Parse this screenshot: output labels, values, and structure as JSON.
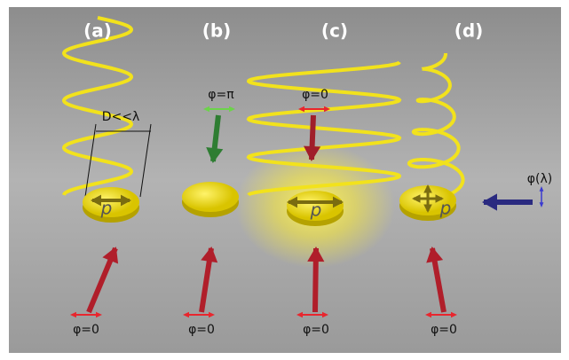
{
  "panels": [
    {
      "label": "(a)",
      "top_label": "D<<λ",
      "dipole": "p",
      "bottom_label": "φ=0"
    },
    {
      "label": "(b)",
      "top_label": "φ=π",
      "bottom_label": "φ=0"
    },
    {
      "label": "(c)",
      "top_label": "φ=0",
      "dipole": "p",
      "bottom_label": "φ=0"
    },
    {
      "label": "(d)",
      "side_label": "φ(λ)",
      "dipole": "p",
      "bottom_label": "φ=0"
    }
  ]
}
